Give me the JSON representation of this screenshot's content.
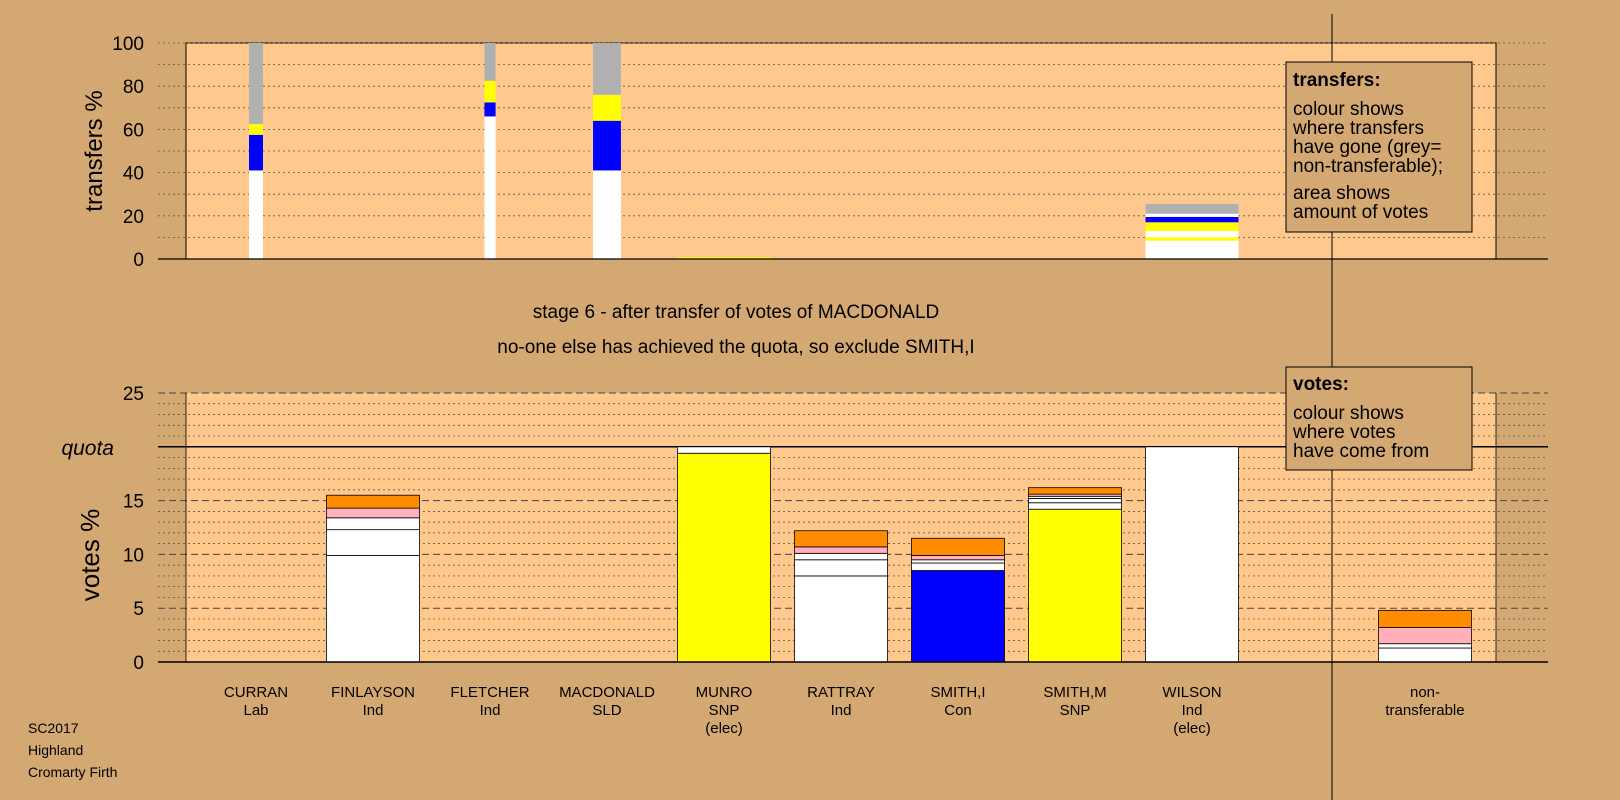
{
  "colors": {
    "page_bg": "#d4a872",
    "plot_bg": "#ffc98e",
    "legend_bg": "#d4a872",
    "white": "#ffffff",
    "grey": "#b0b0b0",
    "yellow": "#ffff00",
    "blue": "#0000ff",
    "pink": "#ffb0b8",
    "orange": "#ff8c00"
  },
  "heading": {
    "stage": "stage 6 - after transfer of votes of MACDONALD",
    "status": "no-one else has achieved the quota, so exclude SMITH,I"
  },
  "footer": {
    "line1": "SC2017",
    "line2": "Highland",
    "line3": "Cromarty Firth"
  },
  "legends": {
    "transfers_title": "transfers:",
    "transfers_lines": [
      "colour shows",
      "where transfers",
      "have gone (grey=",
      "non-transferable);",
      "area shows",
      "amount of votes"
    ],
    "votes_title": "votes:",
    "votes_lines": [
      "colour shows",
      "where votes",
      "have come from"
    ]
  },
  "candidates": [
    {
      "name": "CURRAN",
      "party": "Lab",
      "status": ""
    },
    {
      "name": "FINLAYSON",
      "party": "Ind",
      "status": ""
    },
    {
      "name": "FLETCHER",
      "party": "Ind",
      "status": ""
    },
    {
      "name": "MACDONALD",
      "party": "SLD",
      "status": ""
    },
    {
      "name": "MUNRO",
      "party": "SNP",
      "status": "(elec)"
    },
    {
      "name": "RATTRAY",
      "party": "Ind",
      "status": ""
    },
    {
      "name": "SMITH,I",
      "party": "Con",
      "status": ""
    },
    {
      "name": "SMITH,M",
      "party": "SNP",
      "status": ""
    },
    {
      "name": "WILSON",
      "party": "Ind",
      "status": "(elec)"
    },
    {
      "name": "non-",
      "party": "transferable",
      "status": ""
    }
  ],
  "chart_data": [
    {
      "type": "bar",
      "subtype": "stacked",
      "ylabel": "transfers %",
      "ylim": [
        0,
        100
      ],
      "yticks": [
        0,
        20,
        40,
        60,
        80,
        100
      ],
      "grid": "dotted",
      "categories": [
        "CURRAN",
        "FINLAYSON",
        "FLETCHER",
        "MACDONALD",
        "MUNRO",
        "RATTRAY",
        "SMITH,I",
        "SMITH,M",
        "WILSON",
        "non-transferable"
      ],
      "columns": [
        {
          "category": "CURRAN",
          "width_share": 0.15,
          "segments": [
            {
              "color": "white",
              "value": 41
            },
            {
              "color": "blue",
              "value": 16.5
            },
            {
              "color": "yellow",
              "value": 5
            },
            {
              "color": "grey",
              "value": 37.5
            }
          ]
        },
        {
          "category": "FLETCHER",
          "width_share": 0.12,
          "segments": [
            {
              "color": "white",
              "value": 66
            },
            {
              "color": "blue",
              "value": 6.5
            },
            {
              "color": "yellow",
              "value": 10
            },
            {
              "color": "grey",
              "value": 17.5
            }
          ]
        },
        {
          "category": "MACDONALD",
          "width_share": 0.3,
          "segments": [
            {
              "color": "white",
              "value": 41
            },
            {
              "color": "blue",
              "value": 23
            },
            {
              "color": "yellow",
              "value": 12
            },
            {
              "color": "grey",
              "value": 24
            }
          ]
        },
        {
          "category": "MUNRO",
          "width_share": 1.0,
          "segments": [
            {
              "color": "yellow",
              "value": 0.8
            }
          ]
        },
        {
          "category": "WILSON",
          "width_share": 1.0,
          "segments": [
            {
              "color": "white",
              "value": 8.5
            },
            {
              "color": "yellow",
              "value": 1.5
            },
            {
              "color": "white",
              "value": 3
            },
            {
              "color": "yellow",
              "value": 4
            },
            {
              "color": "blue",
              "value": 2.5
            },
            {
              "color": "white",
              "value": 1.5
            },
            {
              "color": "grey",
              "value": 4.5
            }
          ]
        }
      ]
    },
    {
      "type": "bar",
      "subtype": "stacked",
      "ylabel": "votes %",
      "ylim": [
        0,
        25
      ],
      "yticks": [
        0,
        5,
        10,
        15,
        20,
        25
      ],
      "quota": 20,
      "quota_label": "quota",
      "grid": "dotted",
      "categories": [
        "CURRAN",
        "FINLAYSON",
        "FLETCHER",
        "MACDONALD",
        "MUNRO",
        "RATTRAY",
        "SMITH,I",
        "SMITH,M",
        "WILSON",
        "non-transferable"
      ],
      "stacks": [
        {
          "category": "CURRAN",
          "segments": []
        },
        {
          "category": "FINLAYSON",
          "segments": [
            {
              "color": "white",
              "value": 9.9
            },
            {
              "color": "white",
              "value": 2.4
            },
            {
              "color": "white",
              "value": 1.1
            },
            {
              "color": "pink",
              "value": 0.9
            },
            {
              "color": "orange",
              "value": 1.2
            }
          ]
        },
        {
          "category": "FLETCHER",
          "segments": []
        },
        {
          "category": "MACDONALD",
          "segments": []
        },
        {
          "category": "MUNRO",
          "segments": [
            {
              "color": "yellow",
              "value": 19.4
            },
            {
              "color": "white",
              "value": 0.6
            }
          ]
        },
        {
          "category": "RATTRAY",
          "segments": [
            {
              "color": "white",
              "value": 8.0
            },
            {
              "color": "white",
              "value": 1.5
            },
            {
              "color": "white",
              "value": 0.6
            },
            {
              "color": "pink",
              "value": 0.6
            },
            {
              "color": "orange",
              "value": 1.5
            }
          ]
        },
        {
          "category": "SMITH,I",
          "segments": [
            {
              "color": "blue",
              "value": 8.5
            },
            {
              "color": "white",
              "value": 0.7
            },
            {
              "color": "white",
              "value": 0.3
            },
            {
              "color": "pink",
              "value": 0.4
            },
            {
              "color": "orange",
              "value": 1.6
            }
          ]
        },
        {
          "category": "SMITH,M",
          "segments": [
            {
              "color": "yellow",
              "value": 14.2
            },
            {
              "color": "white",
              "value": 0.6
            },
            {
              "color": "white",
              "value": 0.4
            },
            {
              "color": "white",
              "value": 0.2
            },
            {
              "color": "pink",
              "value": 0.2
            },
            {
              "color": "orange",
              "value": 0.6
            }
          ]
        },
        {
          "category": "WILSON",
          "segments": [
            {
              "color": "white",
              "value": 20
            }
          ]
        },
        {
          "category": "non-transferable",
          "segments": [
            {
              "color": "white",
              "value": 1.3
            },
            {
              "color": "white",
              "value": 0.4
            },
            {
              "color": "pink",
              "value": 1.5
            },
            {
              "color": "orange",
              "value": 1.6
            }
          ]
        }
      ]
    }
  ]
}
